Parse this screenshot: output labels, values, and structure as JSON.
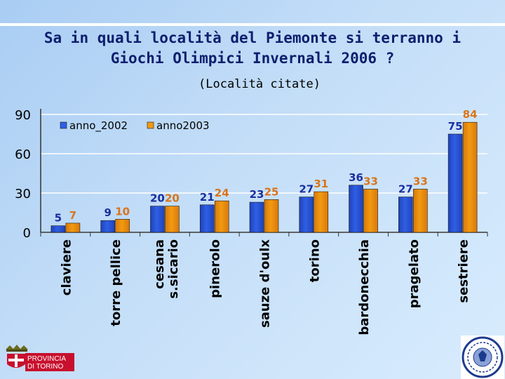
{
  "title_line1": "Sa in quali località del Piemonte si terranno i",
  "title_line2": "Giochi Olimpici Invernali 2006 ?",
  "subtitle": "(Località citate)",
  "colors": {
    "series_2002": "#2f5fe6",
    "series_2003": "#f29a12",
    "label_2002": "#1a2f9e",
    "label_2003": "#d9741a",
    "title": "#0d1f6e",
    "province_red": "#c8102e"
  },
  "logo": {
    "text_line1": "PROVINCIA",
    "text_line2": "DI TORINO"
  },
  "chart_data": {
    "type": "bar",
    "title": "Sa in quali località del Piemonte si terranno i Giochi Olimpici Invernali 2006 ?",
    "subtitle": "(Località citate)",
    "categories": [
      "claviere",
      "torre pellice",
      "cesana s.sicario",
      "pinerolo",
      "sauze d'oulx",
      "torino",
      "bardonecchia",
      "pragelato",
      "sestriere"
    ],
    "category_lines": [
      [
        "claviere"
      ],
      [
        "torre pellice"
      ],
      [
        "cesana",
        "s.sicario"
      ],
      [
        "pinerolo"
      ],
      [
        "sauze d'oulx"
      ],
      [
        "torino"
      ],
      [
        "bardonecchia"
      ],
      [
        "pragelato"
      ],
      [
        "sestriere"
      ]
    ],
    "series": [
      {
        "name": "anno_2002",
        "values": [
          5,
          9,
          20,
          21,
          23,
          27,
          36,
          27,
          75
        ]
      },
      {
        "name": "anno2003",
        "values": [
          7,
          10,
          20,
          24,
          25,
          31,
          33,
          33,
          84
        ]
      }
    ],
    "yticks": [
      0,
      30,
      60,
      90
    ],
    "ylim": [
      0,
      90
    ],
    "xlabel": "",
    "ylabel": "",
    "legend": "top-left",
    "grid": true
  }
}
